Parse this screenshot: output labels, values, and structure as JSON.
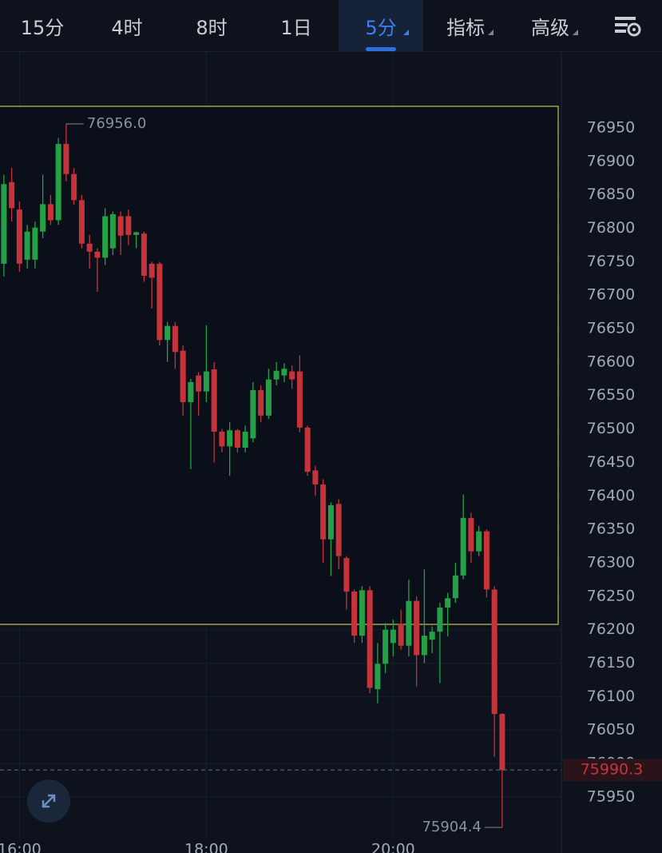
{
  "tabs": [
    {
      "label": "15分"
    },
    {
      "label": "4时"
    },
    {
      "label": "8时"
    },
    {
      "label": "1日"
    },
    {
      "label": "5分",
      "active": true
    },
    {
      "label": "指标"
    },
    {
      "label": "高级"
    }
  ],
  "chart_data": {
    "type": "candlestick",
    "open": [
      76747,
      76869,
      76828,
      76753,
      76753,
      76795,
      76836,
      76812,
      76926,
      76881,
      76842,
      76777,
      76765,
      76756,
      76770,
      76818,
      76818,
      76790,
      76792,
      76747,
      76747,
      76633,
      76654,
      76617,
      76540,
      76580,
      76556,
      76589,
      76496,
      76474,
      76498,
      76472,
      76486,
      76558,
      76520,
      76574,
      76580,
      76586,
      76586,
      76502,
      76438,
      76417,
      76335,
      76388,
      76307,
      76257,
      76191,
      76259,
      76111,
      76149,
      76180,
      76209,
      76176,
      76243,
      76162,
      76185,
      76197,
      76233,
      76247,
      76281,
      76367,
      76317,
      76347,
      76260,
      76074
    ],
    "high": [
      76880,
      76890,
      76840,
      76805,
      76810,
      76880,
      76850,
      76935,
      76956,
      76890,
      76850,
      76790,
      76770,
      76830,
      76825,
      76825,
      76828,
      76795,
      76795,
      76750,
      76750,
      76660,
      76660,
      76625,
      76575,
      76585,
      76655,
      76600,
      76500,
      76510,
      76500,
      76505,
      76570,
      76565,
      76590,
      76600,
      76598,
      76595,
      76610,
      76505,
      76445,
      76425,
      76390,
      76395,
      76310,
      76260,
      76265,
      76265,
      76180,
      76210,
      76215,
      76230,
      76275,
      76250,
      76290,
      76205,
      76240,
      76255,
      76300,
      76402,
      76375,
      76355,
      76350,
      76265,
      76075
    ],
    "low": [
      76728,
      76810,
      76735,
      76740,
      76740,
      76785,
      76805,
      76805,
      76870,
      76835,
      76770,
      76740,
      76705,
      76745,
      76760,
      76760,
      76775,
      76770,
      76720,
      76680,
      76625,
      76600,
      76590,
      76520,
      76440,
      76520,
      76540,
      76450,
      76465,
      76430,
      76465,
      76465,
      76480,
      76510,
      76515,
      76565,
      76570,
      76560,
      76495,
      76430,
      76400,
      76300,
      76280,
      76290,
      76230,
      76180,
      76180,
      76105,
      76090,
      76135,
      76160,
      76170,
      76160,
      76115,
      76150,
      76165,
      76120,
      76190,
      76240,
      76275,
      76300,
      76310,
      76248,
      76010,
      75904.4
    ],
    "close": [
      76866,
      76830,
      76747,
      76795,
      76801,
      76836,
      76812,
      76926,
      76881,
      76842,
      76777,
      76765,
      76756,
      76818,
      76821,
      76789,
      76790,
      76794,
      76729,
      76726,
      76633,
      76654,
      76615,
      76540,
      76570,
      76556,
      76586,
      76496,
      76474,
      76498,
      76472,
      76496,
      76558,
      76520,
      76574,
      76587,
      76590,
      76574,
      76502,
      76436,
      76417,
      76335,
      76386,
      76310,
      76257,
      76191,
      76259,
      76113,
      76149,
      76200,
      76200,
      76176,
      76243,
      76162,
      76191,
      76197,
      76233,
      76247,
      76281,
      76367,
      76317,
      76347,
      76260,
      76074,
      75990.3
    ],
    "up_color": "#25a047",
    "down_color": "#c5343a",
    "ylim": [
      75886.5,
      77063.5
    ],
    "yticks": [
      75950,
      76000,
      76050,
      76100,
      76150,
      76200,
      76250,
      76300,
      76350,
      76400,
      76450,
      76500,
      76550,
      76600,
      76650,
      76700,
      76750,
      76800,
      76850,
      76900,
      76950
    ],
    "xlim": [
      -0.5,
      71.6
    ],
    "xticks": [
      {
        "value": 2,
        "label": "16:00"
      },
      {
        "value": 26,
        "label": "18:00"
      },
      {
        "value": 50,
        "label": "20:00"
      }
    ],
    "max_label": {
      "value": 76956,
      "label": "76956.0"
    },
    "min_label": {
      "value": 75904.4,
      "label": "75904.4"
    },
    "last_price": {
      "value": 75990.3,
      "label": "75990.3"
    },
    "grid": true
  }
}
